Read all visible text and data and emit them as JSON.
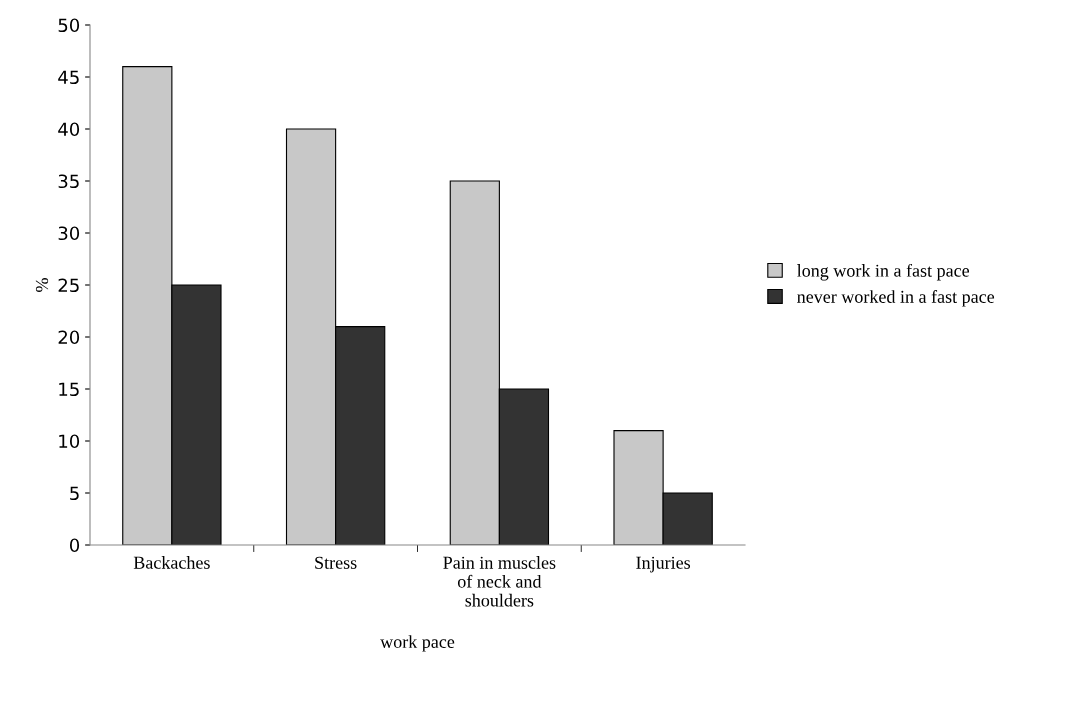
{
  "chart_data": {
    "type": "bar",
    "xlabel": "work pace",
    "ylabel": "%",
    "categories": [
      "Backaches",
      "Stress",
      "Pain in muscles\nof neck and\nshoulders",
      "Injuries"
    ],
    "series": [
      {
        "name": "long work in a fast pace",
        "color": "#c8c8c8",
        "values": [
          46,
          40,
          35,
          11
        ]
      },
      {
        "name": "never worked in a fast pace",
        "color": "#333333",
        "values": [
          25,
          21,
          15,
          5
        ]
      }
    ],
    "ylim": [
      0,
      50
    ],
    "yticks": [
      0,
      5,
      10,
      15,
      20,
      25,
      30,
      35,
      40,
      45,
      50
    ],
    "grid": false,
    "legend": "right"
  }
}
